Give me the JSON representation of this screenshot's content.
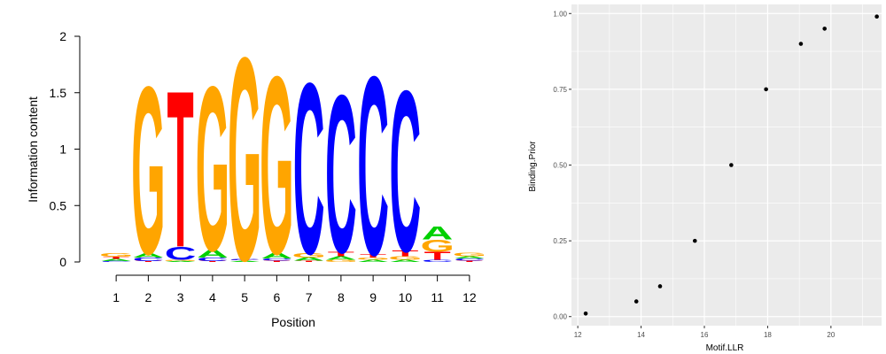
{
  "logo": {
    "type": "sequence_logo",
    "xlabel": "Position",
    "ylabel": "Information content",
    "ylim": [
      0,
      2
    ],
    "yticks": [
      0,
      0.5,
      1,
      1.5,
      2
    ],
    "ytick_labels": [
      "0",
      "0.5",
      "1",
      "1.5",
      "2"
    ],
    "positions": [
      "1",
      "2",
      "3",
      "4",
      "5",
      "6",
      "7",
      "8",
      "9",
      "10",
      "11",
      "12"
    ],
    "colors": {
      "A": "#00d000",
      "C": "#0000ff",
      "G": "#ffa500",
      "T": "#ff0000"
    },
    "columns": [
      [
        {
          "b": "C",
          "h": 0.008
        },
        {
          "b": "A",
          "h": 0.02
        },
        {
          "b": "T",
          "h": 0.02
        },
        {
          "b": "G",
          "h": 0.03
        }
      ],
      [
        {
          "b": "T",
          "h": 0.008
        },
        {
          "b": "C",
          "h": 0.03
        },
        {
          "b": "A",
          "h": 0.04
        },
        {
          "b": "G",
          "h": 1.52
        }
      ],
      [
        {
          "b": "A",
          "h": 0.008
        },
        {
          "b": "G",
          "h": 0.01
        },
        {
          "b": "C",
          "h": 0.12
        },
        {
          "b": "T",
          "h": 1.42
        }
      ],
      [
        {
          "b": "T",
          "h": 0.008
        },
        {
          "b": "C",
          "h": 0.03
        },
        {
          "b": "A",
          "h": 0.07
        },
        {
          "b": "G",
          "h": 1.49
        }
      ],
      [
        {
          "b": "A",
          "h": 0.008
        },
        {
          "b": "T",
          "h": 0.008
        },
        {
          "b": "C",
          "h": 0.008
        },
        {
          "b": "G",
          "h": 1.84
        }
      ],
      [
        {
          "b": "T",
          "h": 0.01
        },
        {
          "b": "C",
          "h": 0.02
        },
        {
          "b": "A",
          "h": 0.05
        },
        {
          "b": "G",
          "h": 1.61
        }
      ],
      [
        {
          "b": "T",
          "h": 0.01
        },
        {
          "b": "A",
          "h": 0.03
        },
        {
          "b": "G",
          "h": 0.04
        },
        {
          "b": "C",
          "h": 1.55
        }
      ],
      [
        {
          "b": "G",
          "h": 0.02
        },
        {
          "b": "A",
          "h": 0.03
        },
        {
          "b": "T",
          "h": 0.04
        },
        {
          "b": "C",
          "h": 1.43
        }
      ],
      [
        {
          "b": "A",
          "h": 0.02
        },
        {
          "b": "G",
          "h": 0.02
        },
        {
          "b": "T",
          "h": 0.03
        },
        {
          "b": "C",
          "h": 1.62
        }
      ],
      [
        {
          "b": "A",
          "h": 0.02
        },
        {
          "b": "G",
          "h": 0.03
        },
        {
          "b": "T",
          "h": 0.05
        },
        {
          "b": "C",
          "h": 1.46
        }
      ],
      [
        {
          "b": "C",
          "h": 0.02
        },
        {
          "b": "T",
          "h": 0.07
        },
        {
          "b": "G",
          "h": 0.11
        },
        {
          "b": "A",
          "h": 0.12
        }
      ],
      [
        {
          "b": "T",
          "h": 0.01
        },
        {
          "b": "C",
          "h": 0.02
        },
        {
          "b": "A",
          "h": 0.02
        },
        {
          "b": "G",
          "h": 0.03
        }
      ]
    ]
  },
  "chart_data": {
    "type": "scatter",
    "xlabel": "Motif.LLR",
    "ylabel": "Binding.Prior",
    "xlim": [
      11.8,
      21.6
    ],
    "ylim": [
      -0.03,
      1.03
    ],
    "xticks": [
      12,
      14,
      16,
      18,
      20
    ],
    "xtick_labels": [
      "12",
      "14",
      "16",
      "18",
      "20"
    ],
    "yticks": [
      0,
      0.25,
      0.5,
      0.75,
      1
    ],
    "ytick_labels": [
      "0.00",
      "0.25",
      "0.50",
      "0.75",
      "1.00"
    ],
    "grid": true,
    "background": "#ebebeb",
    "points": [
      {
        "x": 12.25,
        "y": 0.01
      },
      {
        "x": 13.85,
        "y": 0.05
      },
      {
        "x": 14.6,
        "y": 0.1
      },
      {
        "x": 15.7,
        "y": 0.25
      },
      {
        "x": 16.85,
        "y": 0.5
      },
      {
        "x": 17.95,
        "y": 0.75
      },
      {
        "x": 19.05,
        "y": 0.9
      },
      {
        "x": 19.8,
        "y": 0.95
      },
      {
        "x": 21.45,
        "y": 0.99
      }
    ]
  }
}
